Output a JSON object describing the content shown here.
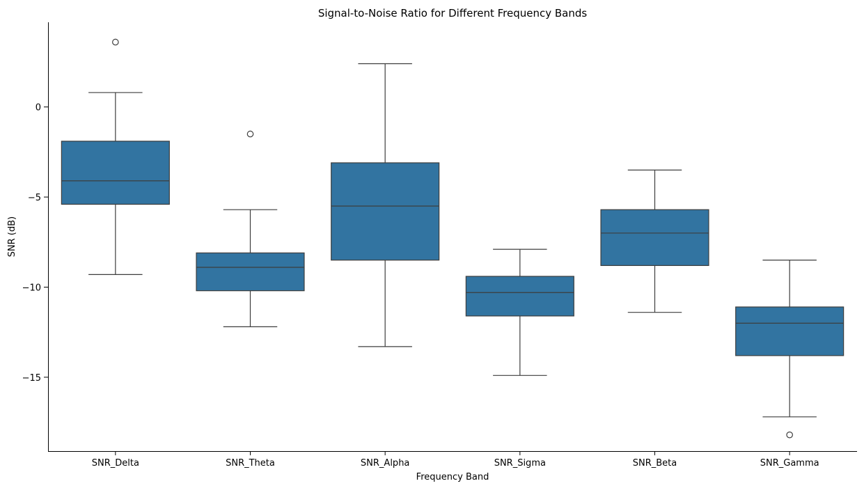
{
  "chart_data": {
    "type": "box",
    "title": "Signal-to-Noise Ratio for Different Frequency Bands",
    "xlabel": "Frequency Band",
    "ylabel": "SNR (dB)",
    "ylim": [
      -19.1,
      4.7
    ],
    "yticks": [
      0,
      -5,
      -10,
      -15
    ],
    "ytick_labels": [
      "0",
      "−5",
      "−10",
      "−15"
    ],
    "grid": false,
    "box_color": "#3274a1",
    "line_color": "#3d3d3d",
    "categories": [
      "SNR_Delta",
      "SNR_Theta",
      "SNR_Alpha",
      "SNR_Sigma",
      "SNR_Beta",
      "SNR_Gamma"
    ],
    "boxes": [
      {
        "whisker_low": -9.3,
        "q1": -5.4,
        "median": -4.1,
        "q3": -1.9,
        "whisker_high": 0.8,
        "outliers": [
          3.6
        ]
      },
      {
        "whisker_low": -12.2,
        "q1": -10.2,
        "median": -8.9,
        "q3": -8.1,
        "whisker_high": -5.7,
        "outliers": [
          -1.5
        ]
      },
      {
        "whisker_low": -13.3,
        "q1": -8.5,
        "median": -5.5,
        "q3": -3.1,
        "whisker_high": 2.4,
        "outliers": []
      },
      {
        "whisker_low": -14.9,
        "q1": -11.6,
        "median": -10.3,
        "q3": -9.4,
        "whisker_high": -7.9,
        "outliers": []
      },
      {
        "whisker_low": -11.4,
        "q1": -8.8,
        "median": -7.0,
        "q3": -5.7,
        "whisker_high": -3.5,
        "outliers": []
      },
      {
        "whisker_low": -17.2,
        "q1": -13.8,
        "median": -12.0,
        "q3": -11.1,
        "whisker_high": -8.5,
        "outliers": [
          -18.2
        ]
      }
    ]
  }
}
